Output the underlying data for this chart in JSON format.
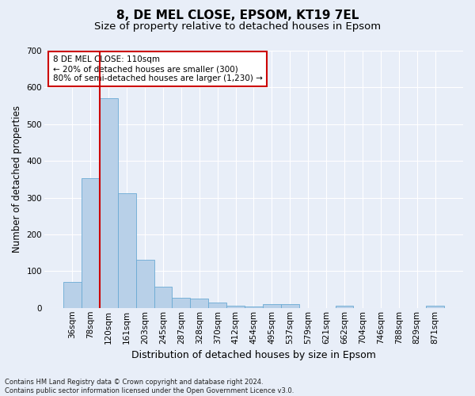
{
  "title": "8, DE MEL CLOSE, EPSOM, KT19 7EL",
  "subtitle": "Size of property relative to detached houses in Epsom",
  "xlabel": "Distribution of detached houses by size in Epsom",
  "ylabel": "Number of detached properties",
  "bar_labels": [
    "36sqm",
    "78sqm",
    "120sqm",
    "161sqm",
    "203sqm",
    "245sqm",
    "287sqm",
    "328sqm",
    "370sqm",
    "412sqm",
    "454sqm",
    "495sqm",
    "537sqm",
    "579sqm",
    "621sqm",
    "662sqm",
    "704sqm",
    "746sqm",
    "788sqm",
    "829sqm",
    "871sqm"
  ],
  "bar_values": [
    70,
    352,
    570,
    313,
    130,
    57,
    27,
    25,
    14,
    7,
    3,
    10,
    10,
    0,
    0,
    5,
    0,
    0,
    0,
    0,
    5
  ],
  "bar_color": "#b8d0e8",
  "bar_edge_color": "#6aaad4",
  "background_color": "#e8eef8",
  "grid_color": "#ffffff",
  "vline_color": "#cc0000",
  "vline_position": 1.5,
  "annotation_text": "8 DE MEL CLOSE: 110sqm\n← 20% of detached houses are smaller (300)\n80% of semi-detached houses are larger (1,230) →",
  "annotation_box_facecolor": "#ffffff",
  "annotation_box_edgecolor": "#cc0000",
  "ylim": [
    0,
    700
  ],
  "yticks": [
    0,
    100,
    200,
    300,
    400,
    500,
    600,
    700
  ],
  "footer_text": "Contains HM Land Registry data © Crown copyright and database right 2024.\nContains public sector information licensed under the Open Government Licence v3.0.",
  "title_fontsize": 11,
  "subtitle_fontsize": 9.5,
  "ylabel_fontsize": 8.5,
  "xlabel_fontsize": 9,
  "tick_fontsize": 7.5,
  "annotation_fontsize": 7.5,
  "footer_fontsize": 6
}
